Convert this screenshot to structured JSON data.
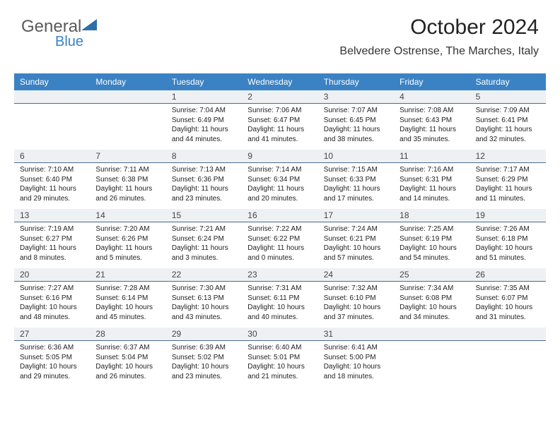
{
  "logo": {
    "text1": "General",
    "text2": "Blue",
    "triangle_color": "#2f6fa8"
  },
  "header": {
    "title": "October 2024",
    "subtitle": "Belvedere Ostrense, The Marches, Italy"
  },
  "colors": {
    "header_bg": "#3b82c4",
    "header_text": "#ffffff",
    "daynum_bg": "#eef1f3",
    "daynum_border": "#4a6a8a",
    "text": "#222222"
  },
  "typography": {
    "title_fontsize": 30,
    "subtitle_fontsize": 16,
    "dayhead_fontsize": 12,
    "daynum_fontsize": 12,
    "info_fontsize": 10
  },
  "day_names": [
    "Sunday",
    "Monday",
    "Tuesday",
    "Wednesday",
    "Thursday",
    "Friday",
    "Saturday"
  ],
  "weeks": [
    [
      {
        "n": "",
        "sr": "",
        "ss": "",
        "dl": ""
      },
      {
        "n": "",
        "sr": "",
        "ss": "",
        "dl": ""
      },
      {
        "n": "1",
        "sr": "Sunrise: 7:04 AM",
        "ss": "Sunset: 6:49 PM",
        "dl": "Daylight: 11 hours and 44 minutes."
      },
      {
        "n": "2",
        "sr": "Sunrise: 7:06 AM",
        "ss": "Sunset: 6:47 PM",
        "dl": "Daylight: 11 hours and 41 minutes."
      },
      {
        "n": "3",
        "sr": "Sunrise: 7:07 AM",
        "ss": "Sunset: 6:45 PM",
        "dl": "Daylight: 11 hours and 38 minutes."
      },
      {
        "n": "4",
        "sr": "Sunrise: 7:08 AM",
        "ss": "Sunset: 6:43 PM",
        "dl": "Daylight: 11 hours and 35 minutes."
      },
      {
        "n": "5",
        "sr": "Sunrise: 7:09 AM",
        "ss": "Sunset: 6:41 PM",
        "dl": "Daylight: 11 hours and 32 minutes."
      }
    ],
    [
      {
        "n": "6",
        "sr": "Sunrise: 7:10 AM",
        "ss": "Sunset: 6:40 PM",
        "dl": "Daylight: 11 hours and 29 minutes."
      },
      {
        "n": "7",
        "sr": "Sunrise: 7:11 AM",
        "ss": "Sunset: 6:38 PM",
        "dl": "Daylight: 11 hours and 26 minutes."
      },
      {
        "n": "8",
        "sr": "Sunrise: 7:13 AM",
        "ss": "Sunset: 6:36 PM",
        "dl": "Daylight: 11 hours and 23 minutes."
      },
      {
        "n": "9",
        "sr": "Sunrise: 7:14 AM",
        "ss": "Sunset: 6:34 PM",
        "dl": "Daylight: 11 hours and 20 minutes."
      },
      {
        "n": "10",
        "sr": "Sunrise: 7:15 AM",
        "ss": "Sunset: 6:33 PM",
        "dl": "Daylight: 11 hours and 17 minutes."
      },
      {
        "n": "11",
        "sr": "Sunrise: 7:16 AM",
        "ss": "Sunset: 6:31 PM",
        "dl": "Daylight: 11 hours and 14 minutes."
      },
      {
        "n": "12",
        "sr": "Sunrise: 7:17 AM",
        "ss": "Sunset: 6:29 PM",
        "dl": "Daylight: 11 hours and 11 minutes."
      }
    ],
    [
      {
        "n": "13",
        "sr": "Sunrise: 7:19 AM",
        "ss": "Sunset: 6:27 PM",
        "dl": "Daylight: 11 hours and 8 minutes."
      },
      {
        "n": "14",
        "sr": "Sunrise: 7:20 AM",
        "ss": "Sunset: 6:26 PM",
        "dl": "Daylight: 11 hours and 5 minutes."
      },
      {
        "n": "15",
        "sr": "Sunrise: 7:21 AM",
        "ss": "Sunset: 6:24 PM",
        "dl": "Daylight: 11 hours and 3 minutes."
      },
      {
        "n": "16",
        "sr": "Sunrise: 7:22 AM",
        "ss": "Sunset: 6:22 PM",
        "dl": "Daylight: 11 hours and 0 minutes."
      },
      {
        "n": "17",
        "sr": "Sunrise: 7:24 AM",
        "ss": "Sunset: 6:21 PM",
        "dl": "Daylight: 10 hours and 57 minutes."
      },
      {
        "n": "18",
        "sr": "Sunrise: 7:25 AM",
        "ss": "Sunset: 6:19 PM",
        "dl": "Daylight: 10 hours and 54 minutes."
      },
      {
        "n": "19",
        "sr": "Sunrise: 7:26 AM",
        "ss": "Sunset: 6:18 PM",
        "dl": "Daylight: 10 hours and 51 minutes."
      }
    ],
    [
      {
        "n": "20",
        "sr": "Sunrise: 7:27 AM",
        "ss": "Sunset: 6:16 PM",
        "dl": "Daylight: 10 hours and 48 minutes."
      },
      {
        "n": "21",
        "sr": "Sunrise: 7:28 AM",
        "ss": "Sunset: 6:14 PM",
        "dl": "Daylight: 10 hours and 45 minutes."
      },
      {
        "n": "22",
        "sr": "Sunrise: 7:30 AM",
        "ss": "Sunset: 6:13 PM",
        "dl": "Daylight: 10 hours and 43 minutes."
      },
      {
        "n": "23",
        "sr": "Sunrise: 7:31 AM",
        "ss": "Sunset: 6:11 PM",
        "dl": "Daylight: 10 hours and 40 minutes."
      },
      {
        "n": "24",
        "sr": "Sunrise: 7:32 AM",
        "ss": "Sunset: 6:10 PM",
        "dl": "Daylight: 10 hours and 37 minutes."
      },
      {
        "n": "25",
        "sr": "Sunrise: 7:34 AM",
        "ss": "Sunset: 6:08 PM",
        "dl": "Daylight: 10 hours and 34 minutes."
      },
      {
        "n": "26",
        "sr": "Sunrise: 7:35 AM",
        "ss": "Sunset: 6:07 PM",
        "dl": "Daylight: 10 hours and 31 minutes."
      }
    ],
    [
      {
        "n": "27",
        "sr": "Sunrise: 6:36 AM",
        "ss": "Sunset: 5:05 PM",
        "dl": "Daylight: 10 hours and 29 minutes."
      },
      {
        "n": "28",
        "sr": "Sunrise: 6:37 AM",
        "ss": "Sunset: 5:04 PM",
        "dl": "Daylight: 10 hours and 26 minutes."
      },
      {
        "n": "29",
        "sr": "Sunrise: 6:39 AM",
        "ss": "Sunset: 5:02 PM",
        "dl": "Daylight: 10 hours and 23 minutes."
      },
      {
        "n": "30",
        "sr": "Sunrise: 6:40 AM",
        "ss": "Sunset: 5:01 PM",
        "dl": "Daylight: 10 hours and 21 minutes."
      },
      {
        "n": "31",
        "sr": "Sunrise: 6:41 AM",
        "ss": "Sunset: 5:00 PM",
        "dl": "Daylight: 10 hours and 18 minutes."
      },
      {
        "n": "",
        "sr": "",
        "ss": "",
        "dl": ""
      },
      {
        "n": "",
        "sr": "",
        "ss": "",
        "dl": ""
      }
    ]
  ]
}
